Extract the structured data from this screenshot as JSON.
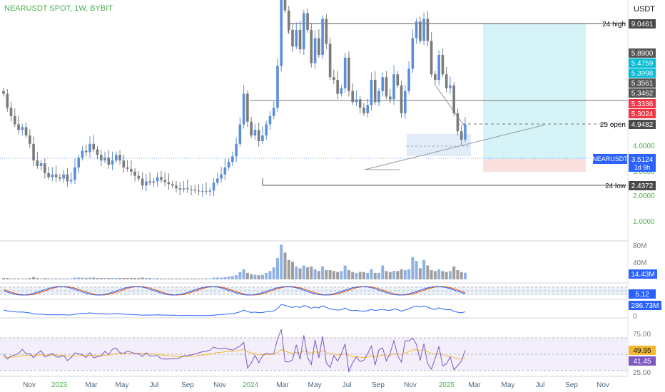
{
  "symbol": "NEARUSDT SPOT, 1W, BYBIT",
  "currency": "USDT",
  "colors": {
    "up": "#5b8fd9",
    "down": "#7b7b7b",
    "symbol_green": "#4caf50",
    "price_blue": "#2962ff",
    "target_cyan": "#d6f3f7",
    "stop_red": "#fbe0e0",
    "rsi_purple": "#7e57c2",
    "rsi_ma": "#f5b82e",
    "stoch_k": "#2962ff",
    "stoch_d": "#e65100",
    "obv_blue": "#2962ff"
  },
  "chart_data": [
    {
      "type": "candlestick",
      "title": "NEARUSDT SPOT, 1W, BYBIT",
      "ylabel": "USDT",
      "y_tick_labels": [
        "1.0000",
        "2.0000",
        "3.0000",
        "4.0000"
      ],
      "x_tick_labels": [
        "Nov",
        "2023",
        "Mar",
        "May",
        "Jul",
        "Sep",
        "Nov",
        "2024",
        "Mar",
        "May",
        "Jul",
        "Sep",
        "Nov",
        "2025",
        "Mar",
        "May",
        "Jul",
        "Sep",
        "Nov"
      ],
      "current_price": "3.5124",
      "current_label": "NEARUSDT",
      "countdown": "1d 9h",
      "levels": [
        {
          "name": "24 high",
          "value": "9.0461"
        },
        {
          "name": "25 open",
          "value": "4.9482"
        },
        {
          "name": "24 low",
          "value": "2.4372"
        }
      ],
      "price_tags": [
        {
          "value": "5.8900",
          "color": "#555555"
        },
        {
          "value": "5.4759",
          "color": "#00bcd4"
        },
        {
          "value": "5.3998",
          "color": "#00bcd4"
        },
        {
          "value": "5.3561",
          "color": "#555555"
        },
        {
          "value": "5.3462",
          "color": "#555555"
        },
        {
          "value": "5.3336",
          "color": "#f23645"
        },
        {
          "value": "5.3024",
          "color": "#f23645"
        }
      ],
      "closes": [
        4.6,
        4.1,
        3.8,
        3.5,
        3.3,
        3.4,
        3.1,
        2.8,
        2.2,
        2.0,
        2.1,
        1.75,
        1.6,
        1.7,
        1.6,
        1.55,
        1.7,
        1.45,
        1.5,
        1.95,
        2.3,
        2.55,
        2.5,
        2.8,
        2.6,
        2.4,
        2.2,
        2.3,
        2.05,
        2.2,
        2.4,
        2.2,
        1.95,
        1.9,
        1.8,
        1.65,
        1.55,
        1.3,
        1.45,
        1.4,
        1.45,
        1.6,
        1.5,
        1.42,
        1.35,
        1.3,
        1.2,
        1.15,
        1.2,
        1.18,
        1.15,
        1.12,
        1.1,
        1.1,
        1.08,
        1.12,
        1.4,
        1.55,
        1.7,
        1.95,
        2.15,
        2.35,
        2.8,
        3.5,
        4.6,
        3.6,
        3.1,
        3.3,
        2.9,
        3.1,
        3.5,
        3.8,
        4.1,
        5.6,
        8.2,
        7.6,
        6.9,
        6.3,
        6.9,
        6.2,
        7.5,
        6.9,
        5.7,
        6.6,
        6.0,
        7.3,
        6.4,
        5.2,
        5.1,
        4.6,
        4.8,
        5.9,
        4.7,
        4.3,
        4.4,
        4.1,
        3.9,
        4.2,
        5.1,
        4.3,
        4.7,
        5.2,
        4.5,
        4.4,
        5.3,
        4.9,
        3.9,
        4.7,
        5.5,
        6.6,
        7.2,
        6.5,
        7.3,
        6.5,
        5.3,
        5.1,
        6.0,
        5.3,
        4.8,
        4.9,
        3.9,
        3.25,
        2.95,
        3.5
      ]
    },
    {
      "type": "bar",
      "title": "Volume",
      "y_tick_labels": [
        "0",
        "40M",
        "80M"
      ],
      "last_value": "14.43M",
      "values_millions": [
        3,
        3,
        2,
        2,
        2,
        2,
        2,
        3,
        5,
        3,
        2,
        3,
        2,
        2,
        2,
        2,
        2,
        2,
        2,
        4,
        4,
        4,
        3,
        4,
        4,
        3,
        3,
        3,
        3,
        3,
        3,
        3,
        3,
        3,
        3,
        3,
        3,
        4,
        3,
        3,
        2,
        3,
        2,
        2,
        2,
        2,
        2,
        2,
        2,
        2,
        2,
        2,
        2,
        2,
        2,
        2,
        4,
        4,
        4,
        5,
        6,
        7,
        9,
        16,
        22,
        14,
        11,
        10,
        9,
        10,
        14,
        18,
        26,
        46,
        75,
        58,
        42,
        38,
        28,
        24,
        30,
        26,
        28,
        22,
        18,
        28,
        20,
        20,
        18,
        16,
        18,
        30,
        20,
        16,
        14,
        16,
        16,
        14,
        22,
        14,
        14,
        30,
        18,
        16,
        18,
        18,
        22,
        20,
        22,
        48,
        40,
        24,
        42,
        30,
        20,
        18,
        22,
        18,
        16,
        18,
        28,
        20,
        16,
        14.43
      ]
    },
    {
      "type": "line",
      "title": "Stochastic RSI",
      "last_value": "5.12"
    },
    {
      "type": "line",
      "title": "OBV",
      "last_value": "286.73M",
      "y_tick_labels": [
        "0"
      ]
    },
    {
      "type": "line",
      "title": "RSI",
      "y_tick_labels": [
        "25.00",
        "75.00"
      ],
      "rsi_last": "41.45",
      "ma_last": "49.95"
    }
  ]
}
